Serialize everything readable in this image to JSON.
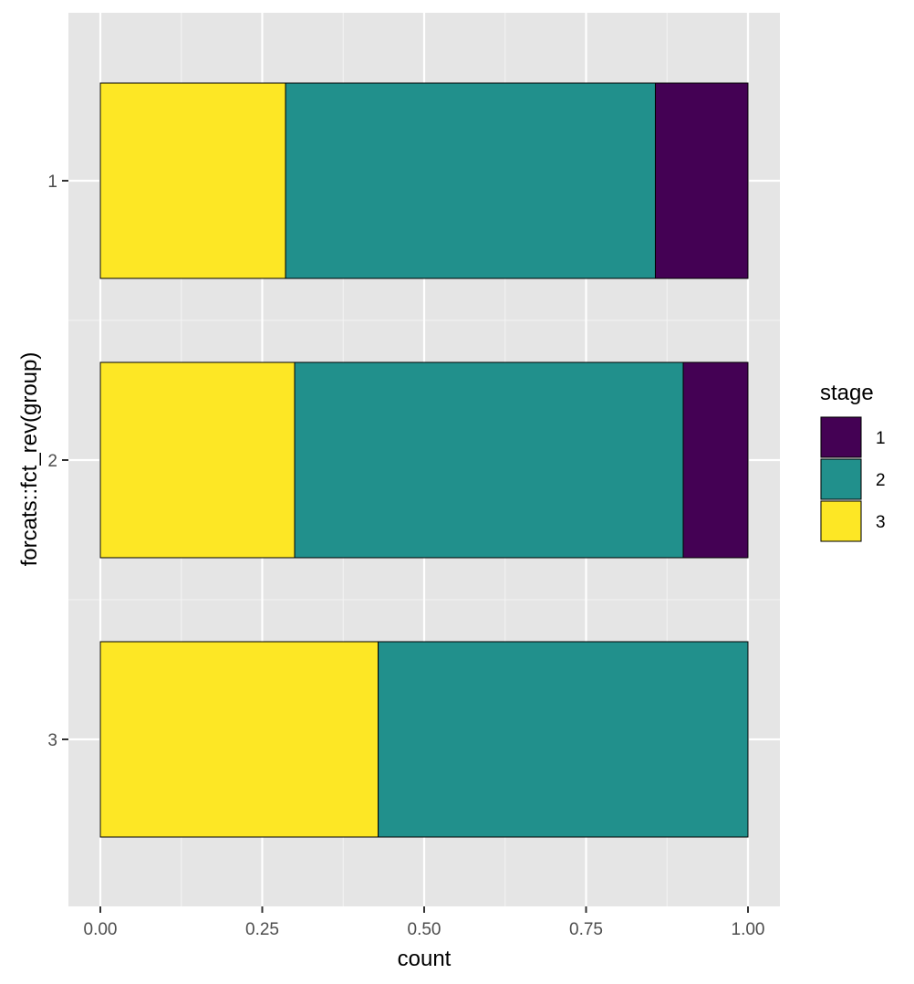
{
  "chart_data": {
    "type": "bar",
    "orientation": "horizontal",
    "stacked": true,
    "xlabel": "count",
    "ylabel": "forcats::fct_rev(group)",
    "xlim": [
      0,
      1
    ],
    "x_ticks": [
      "0.00",
      "0.25",
      "0.50",
      "0.75",
      "1.00"
    ],
    "x_tick_values": [
      0,
      0.25,
      0.5,
      0.75,
      1.0
    ],
    "categories": [
      "1",
      "2",
      "3"
    ],
    "stack_order": [
      "3",
      "2",
      "1"
    ],
    "series": [
      {
        "name": "1",
        "color": "#440154",
        "values": [
          0.143,
          0.1,
          0.0
        ]
      },
      {
        "name": "2",
        "color": "#21908C",
        "values": [
          0.571,
          0.6,
          0.571
        ]
      },
      {
        "name": "3",
        "color": "#FDE725",
        "values": [
          0.286,
          0.3,
          0.429
        ]
      }
    ],
    "legend": {
      "title": "stage",
      "position": "right",
      "entries": [
        "1",
        "2",
        "3"
      ]
    },
    "grid": true,
    "panel_background": "#E5E5E5",
    "grid_color": "#FFFFFF"
  }
}
